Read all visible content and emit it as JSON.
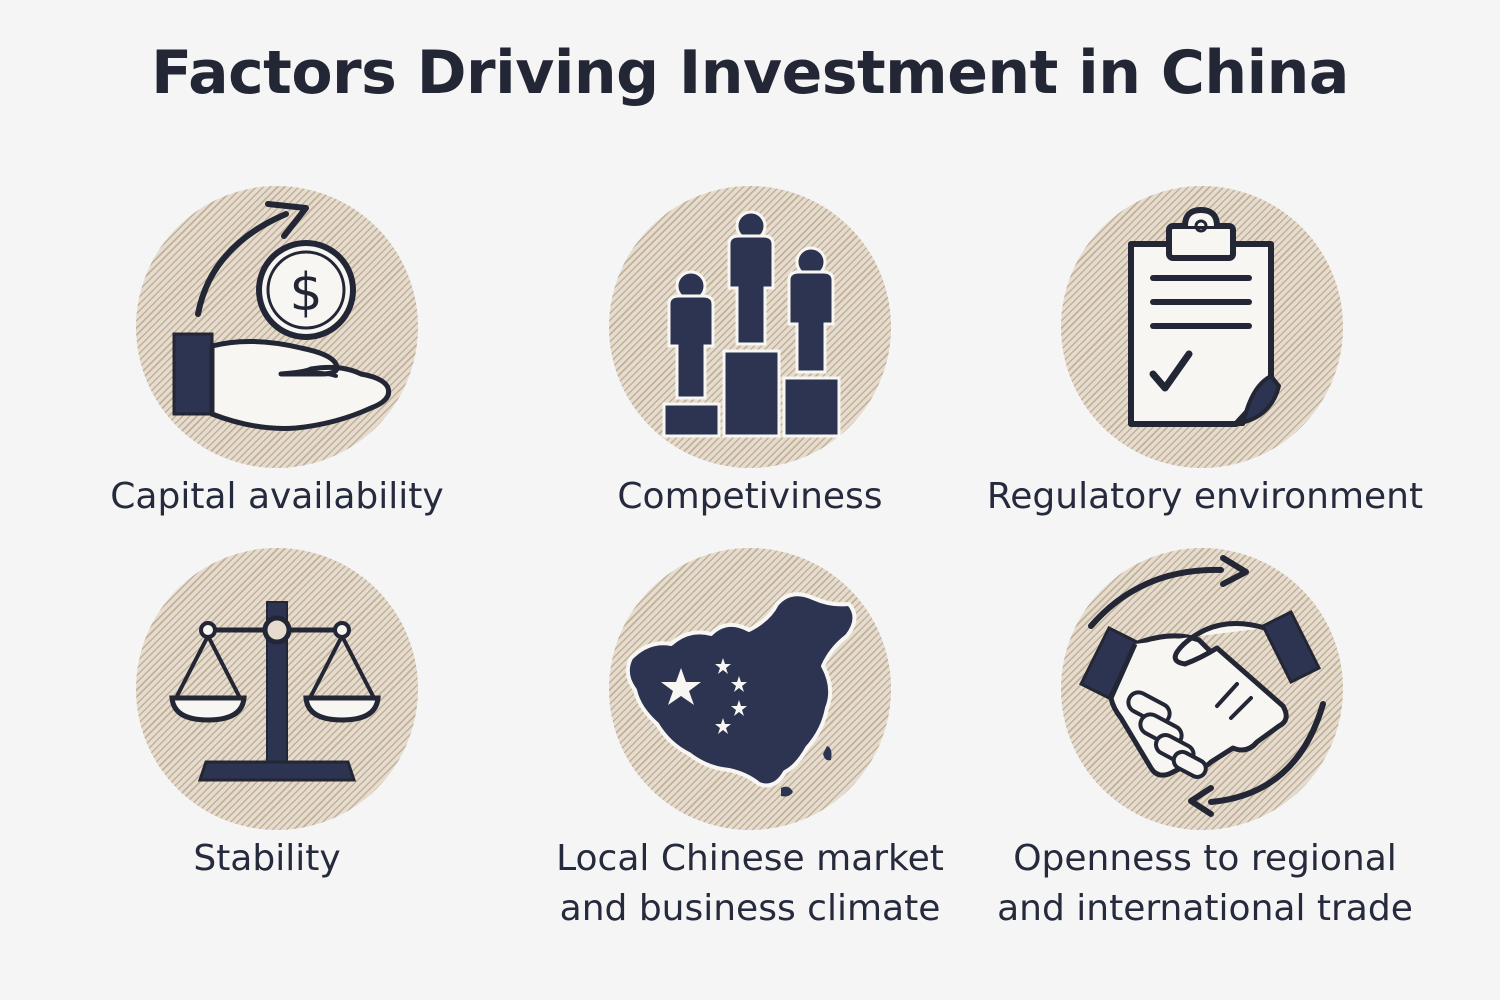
{
  "title": "Factors Driving Investment in China",
  "factors": [
    {
      "label_lines": [
        "Capital availability"
      ],
      "icon": "hand-coin-icon"
    },
    {
      "label_lines": [
        "Competiviness"
      ],
      "icon": "podium-icon"
    },
    {
      "label_lines": [
        "Regulatory environment"
      ],
      "icon": "clipboard-check-icon"
    },
    {
      "label_lines": [
        "Stability"
      ],
      "icon": "scales-icon"
    },
    {
      "label_lines": [
        "Local Chinese market",
        "and business climate"
      ],
      "icon": "china-map-icon"
    },
    {
      "label_lines": [
        "Openness to regional",
        "and international trade"
      ],
      "icon": "handshake-icon"
    }
  ],
  "colors": {
    "ink": "#232634",
    "navy": "#2d3451",
    "circle_fill": "#e5dccf",
    "background": "#f5f5f5"
  }
}
